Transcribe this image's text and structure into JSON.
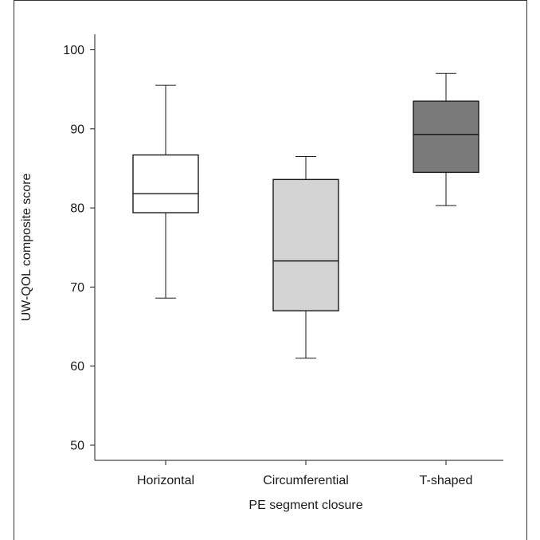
{
  "chart_data": {
    "type": "box",
    "xlabel": "PE segment closure",
    "ylabel": "UW-QOL composite score",
    "ylim": [
      48,
      102
    ],
    "yticks": [
      50,
      60,
      70,
      80,
      90,
      100
    ],
    "grid": false,
    "categories": [
      "Horizontal",
      "Circumferential",
      "T-shaped"
    ],
    "boxes": [
      {
        "category": "Horizontal",
        "min": 68.6,
        "q1": 79.4,
        "median": 81.8,
        "q3": 86.7,
        "max": 95.5,
        "fill": "#ffffff"
      },
      {
        "category": "Circumferential",
        "min": 61.0,
        "q1": 67.0,
        "median": 73.3,
        "q3": 83.6,
        "max": 86.5,
        "fill": "#d4d4d4"
      },
      {
        "category": "T-shaped",
        "min": 80.3,
        "q1": 84.5,
        "median": 89.3,
        "q3": 93.5,
        "max": 97.0,
        "fill": "#7a7a7a"
      }
    ]
  }
}
